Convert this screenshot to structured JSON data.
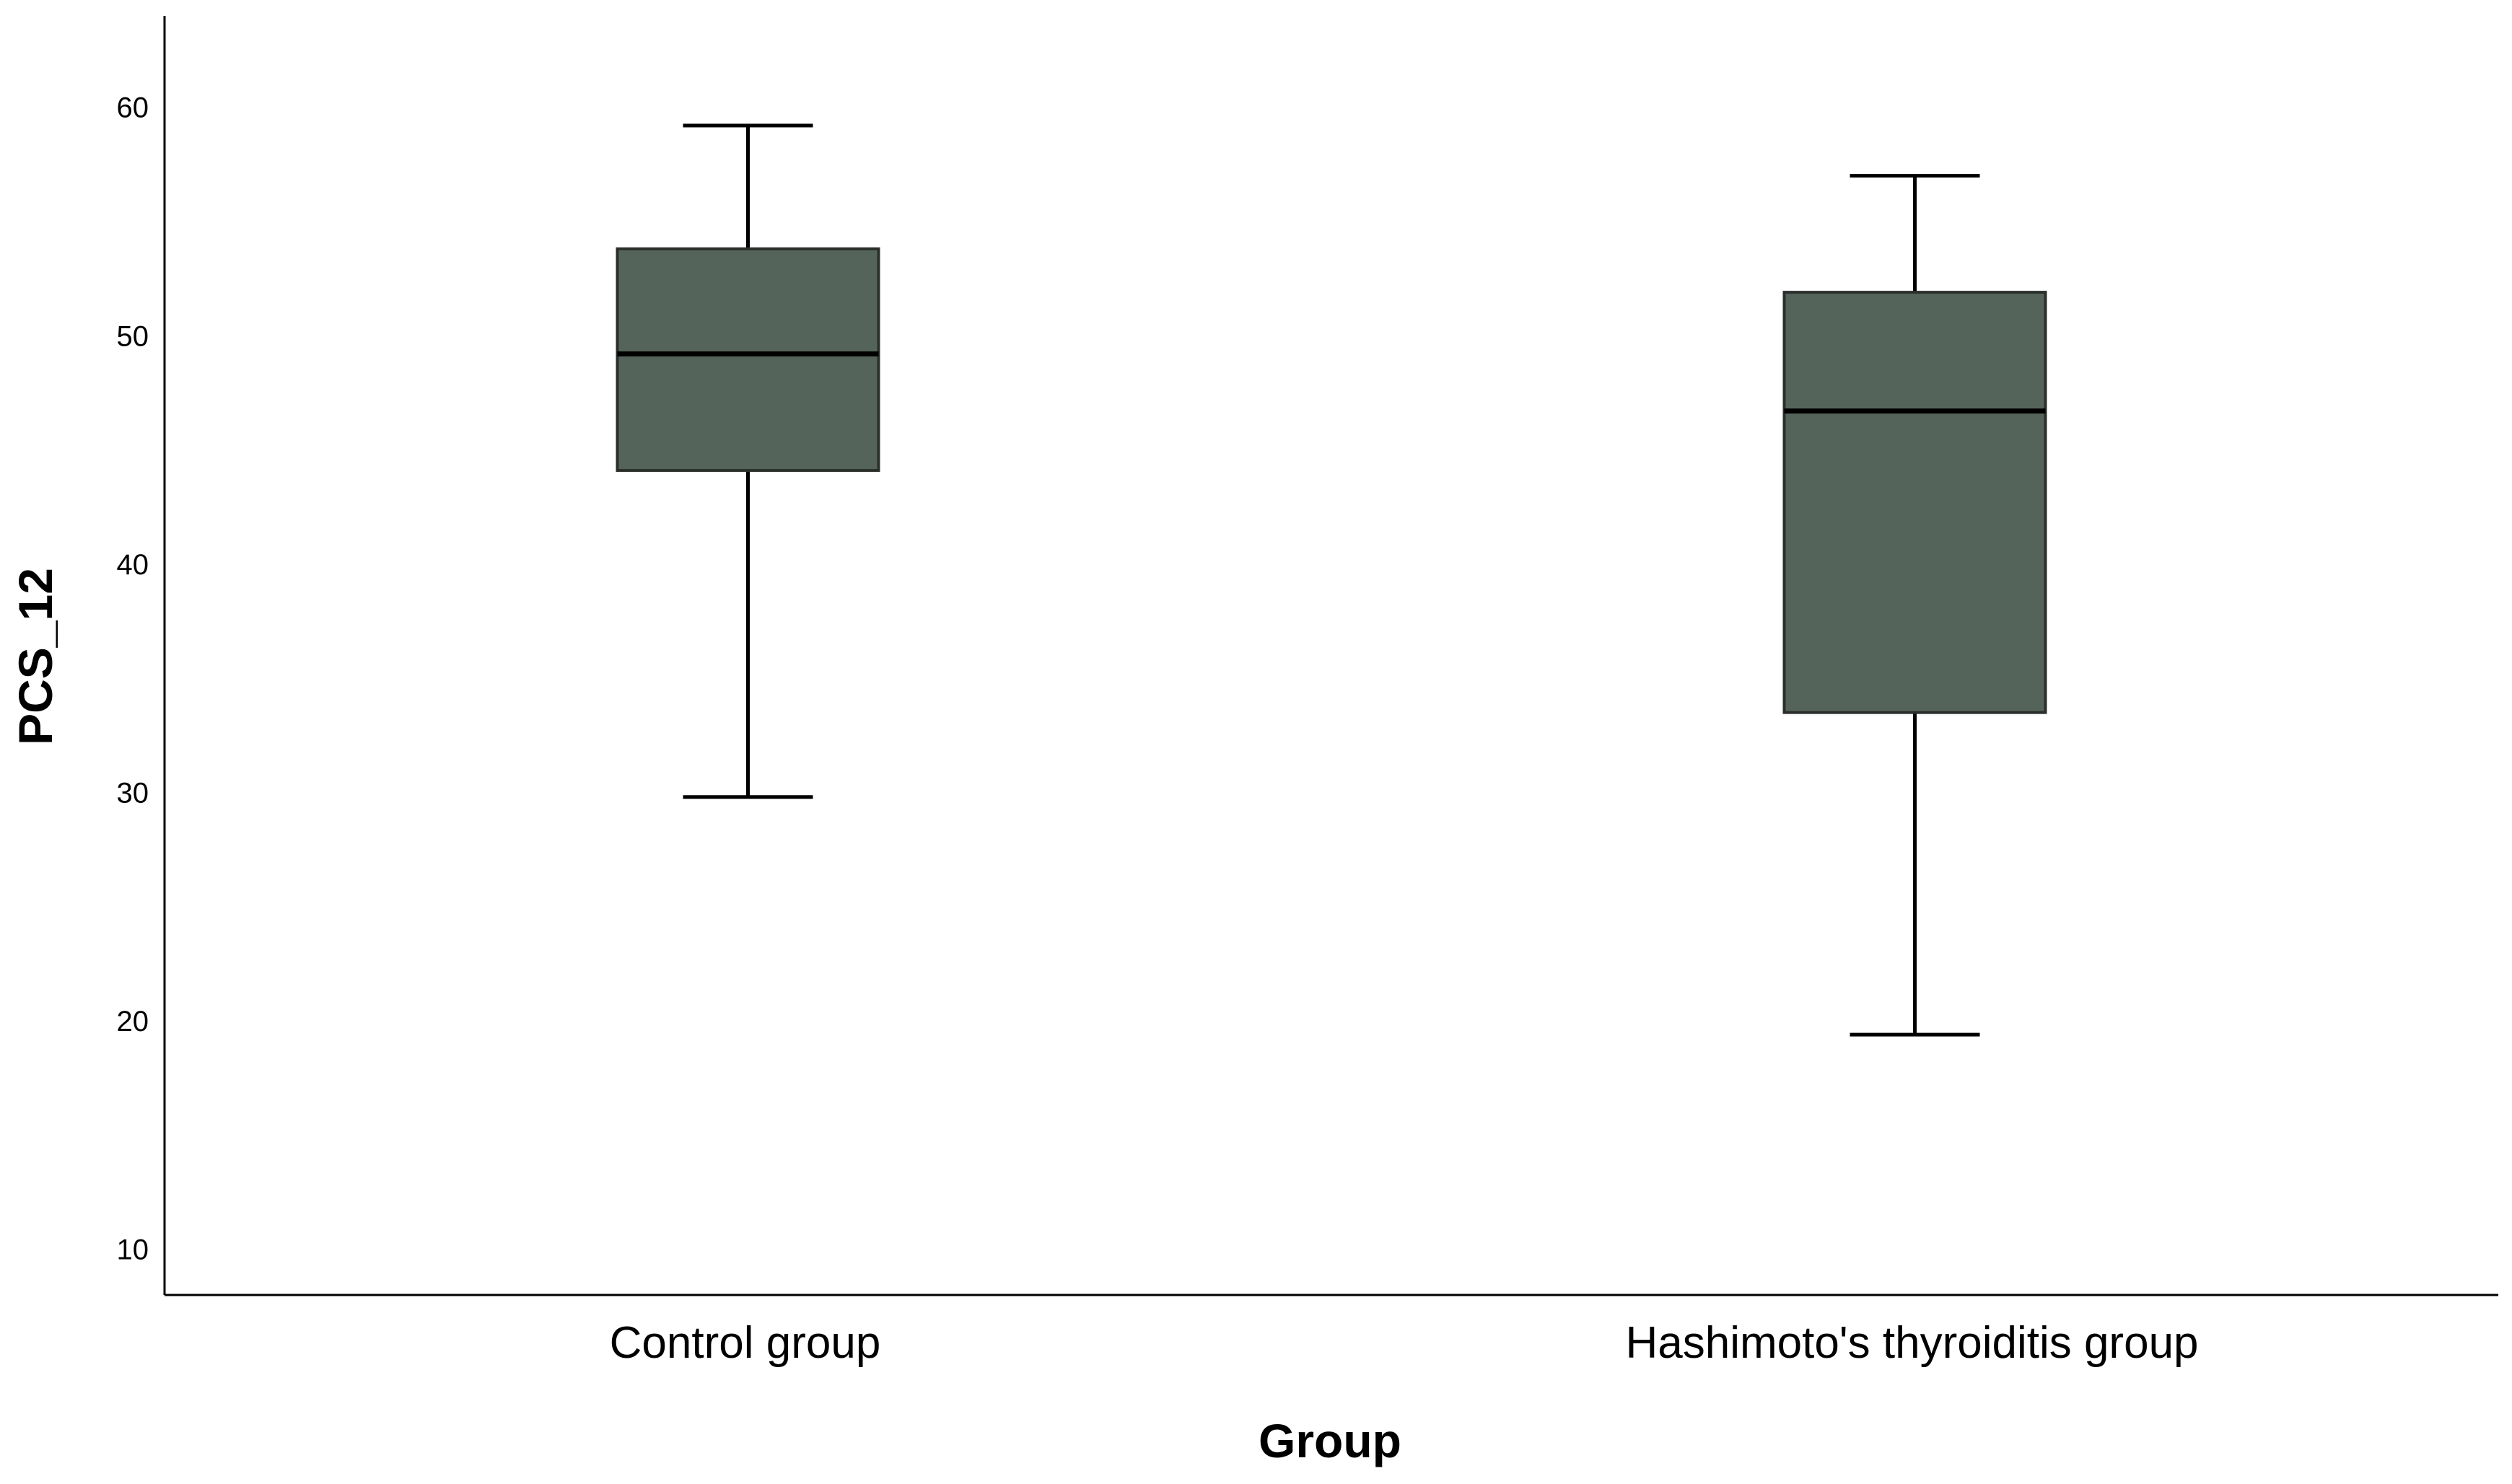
{
  "chart_data": {
    "type": "boxplot",
    "title": "",
    "xlabel": "Group",
    "ylabel": "PCS_12",
    "ylim": [
      8,
      64
    ],
    "yticks": [
      10,
      20,
      30,
      40,
      50,
      60
    ],
    "grid": false,
    "legend": "none",
    "box_color": "#55645b",
    "line_color": "#000000",
    "categories": [
      "Control group",
      "Hashimoto's thyroiditis group"
    ],
    "series": [
      {
        "name": "PCS_12",
        "boxes": [
          {
            "category": "Control group",
            "min": 29.8,
            "q1": 44.1,
            "median": 49.2,
            "q3": 53.8,
            "max": 59.2
          },
          {
            "category": "Hashimoto's thyroiditis group",
            "min": 19.4,
            "q1": 33.5,
            "median": 46.7,
            "q3": 51.9,
            "max": 57.0
          }
        ]
      }
    ]
  }
}
